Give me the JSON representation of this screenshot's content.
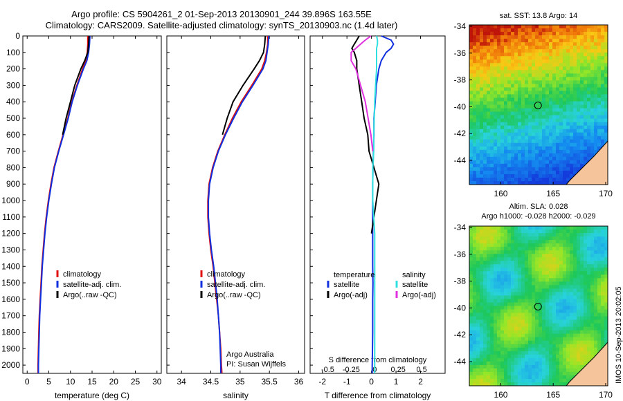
{
  "header": {
    "title_line1": "Argo profile: CS 5904261_2 01-Sep-2013 20130901_244 39.896S 163.55E",
    "title_line2": "Climatology: CARS2009. Satellite-adjusted climatology: synTS_20130903.nc (1.4d later)"
  },
  "stamp": "IMOS 10-Sep-2013 20:02:05",
  "colors": {
    "red": "#e01010",
    "blue": "#1030e0",
    "black": "#000000",
    "cyan": "#30e0e0",
    "magenta": "#e030e0",
    "land": "#f6c49a"
  },
  "chart_data": [
    {
      "type": "line",
      "name": "temperature",
      "xlabel": "temperature (deg C)",
      "ylabel": "",
      "xlim": [
        -1,
        31
      ],
      "ylim": [
        2050,
        0
      ],
      "xticks": [
        0,
        5,
        10,
        15,
        20,
        25,
        30
      ],
      "yticks": [
        0,
        100,
        200,
        300,
        400,
        500,
        600,
        700,
        800,
        900,
        1000,
        1100,
        1200,
        1300,
        1400,
        1500,
        1600,
        1700,
        1800,
        1900,
        2000
      ],
      "legend": {
        "placement": "lower-center",
        "entries": [
          "climatology",
          "satellite-adj. clim.",
          "Argo(..raw -QC)"
        ]
      },
      "depth": [
        0,
        50,
        100,
        150,
        200,
        300,
        400,
        500,
        600,
        700,
        800,
        900,
        1000,
        1100,
        1200,
        1300,
        1400,
        1500,
        1600,
        1700,
        1800,
        1900,
        2000,
        2050
      ],
      "series": [
        {
          "name": "climatology",
          "color": "#e01010",
          "values": [
            14.0,
            14.0,
            13.9,
            13.5,
            12.8,
            11.5,
            10.3,
            9.4,
            8.3,
            7.2,
            6.2,
            5.5,
            4.9,
            4.4,
            4.0,
            3.7,
            3.4,
            3.2,
            3.0,
            2.8,
            2.7,
            2.6,
            2.5,
            2.5
          ]
        },
        {
          "name": "satellite-adj. clim.",
          "color": "#1030e0",
          "values": [
            14.5,
            14.4,
            14.2,
            13.8,
            13.0,
            11.6,
            10.4,
            9.5,
            8.4,
            7.3,
            6.3,
            5.6,
            5.0,
            4.5,
            4.1,
            3.8,
            3.5,
            3.3,
            3.1,
            2.9,
            2.8,
            2.7,
            2.6,
            2.6
          ]
        },
        {
          "name": "Argo(..raw -QC)",
          "color": "#000000",
          "depth_max": 600,
          "values": [
            14.3,
            14.2,
            14.0,
            13.3,
            12.4,
            11.0,
            10.0,
            9.0,
            8.2
          ]
        }
      ]
    },
    {
      "type": "line",
      "name": "salinity",
      "xlabel": "salinity",
      "xlim": [
        33.75,
        36.1
      ],
      "ylim": [
        2050,
        0
      ],
      "xticks": [
        34,
        34.5,
        35,
        35.5,
        36
      ],
      "xticklabels": [
        "34",
        "34.5",
        "35",
        "35.5",
        "36"
      ],
      "legend": {
        "placement": "lower-center",
        "entries": [
          "climatology",
          "satellite-adj. clim.",
          "Argo(..raw -QC)"
        ]
      },
      "annotation": [
        "Argo Australia",
        "PI: Susan Wijffels"
      ],
      "depth": [
        0,
        50,
        100,
        150,
        200,
        300,
        400,
        500,
        600,
        700,
        800,
        900,
        1000,
        1100,
        1200,
        1300,
        1400,
        1500,
        1600,
        1700,
        1800,
        1900,
        2000,
        2050
      ],
      "series": [
        {
          "name": "climatology",
          "color": "#e01010",
          "values": [
            35.47,
            35.47,
            35.45,
            35.42,
            35.37,
            35.2,
            35.02,
            34.87,
            34.74,
            34.62,
            34.53,
            34.47,
            34.45,
            34.45,
            34.47,
            34.5,
            34.54,
            34.57,
            34.6,
            34.63,
            34.65,
            34.67,
            34.68,
            34.69
          ]
        },
        {
          "name": "satellite-adj. clim.",
          "color": "#1030e0",
          "values": [
            35.49,
            35.48,
            35.46,
            35.44,
            35.39,
            35.22,
            35.04,
            34.89,
            34.75,
            34.63,
            34.54,
            34.48,
            34.46,
            34.46,
            34.48,
            34.51,
            34.55,
            34.58,
            34.61,
            34.63,
            34.65,
            34.66,
            34.67,
            34.67
          ]
        },
        {
          "name": "Argo(..raw -QC)",
          "color": "#000000",
          "depth_max": 600,
          "values": [
            35.43,
            35.42,
            35.4,
            35.33,
            35.24,
            35.05,
            34.88,
            34.78,
            34.7
          ]
        }
      ]
    },
    {
      "type": "line",
      "name": "difference",
      "xlabel": "T difference from climatology",
      "xlabel_top": "S difference from climatology",
      "xlim": [
        -2.5,
        3
      ],
      "ylim": [
        2050,
        0
      ],
      "xticks": [
        -2,
        -1,
        0,
        1,
        2
      ],
      "sticks": [
        -0.5,
        -0.25,
        0,
        0.25,
        0.5
      ],
      "sticklabels": [
        "-0.5",
        "-0.25",
        "0",
        "0.25",
        "0.5"
      ],
      "legend": {
        "placement": "lower-center",
        "groups": [
          {
            "title": "temperature",
            "entries": [
              "satellite",
              "Argo(-adj)"
            ]
          },
          {
            "title": "salinity",
            "entries": [
              "satellite",
              "Argo(-adj)"
            ]
          }
        ]
      },
      "depth": [
        0,
        25,
        50,
        75,
        100,
        150,
        200,
        300,
        400,
        500,
        600,
        700,
        800,
        900,
        1000,
        1100,
        1200,
        1300,
        1400,
        1500,
        1600,
        1700,
        1800,
        1900,
        2000,
        2050
      ],
      "series": [
        {
          "name": "temperature satellite",
          "color": "#1030e0",
          "values": [
            0.4,
            0.8,
            0.9,
            0.8,
            0.6,
            0.4,
            0.3,
            0.2,
            0.15,
            0.1,
            0.1,
            0.08,
            0.06,
            0.05,
            0.05,
            0.05,
            0.05,
            0.05,
            0.05,
            0.06,
            0.05,
            0.05,
            0.05,
            0.04,
            0.03,
            0.03
          ]
        },
        {
          "name": "temperature Argo(-adj)",
          "color": "#000000",
          "depth_max": 1200,
          "values": [
            -0.5,
            -0.6,
            -0.7,
            -0.8,
            -0.7,
            -0.6,
            -0.6,
            -0.5,
            -0.4,
            -0.3,
            -0.15,
            -0.1,
            0.1,
            0.3,
            0.2,
            0.1,
            0.0
          ]
        },
        {
          "name": "salinity satellite",
          "color": "#30e0e0",
          "values": [
            0.02,
            0.03,
            0.03,
            0.02,
            0.02,
            0.02,
            0.02,
            0.01,
            0.0,
            -0.005,
            -0.01,
            -0.01,
            -0.02,
            -0.02,
            -0.02,
            -0.01,
            0.0,
            0.0,
            0.0,
            0.0,
            0.0,
            0.0,
            0.0,
            0.0,
            0.0,
            0.0
          ]
        },
        {
          "name": "salinity Argo(-adj)",
          "color": "#e030e0",
          "depth_max": 650,
          "values": [
            -0.04,
            -0.1,
            -0.15,
            -0.2,
            -0.25,
            -0.25,
            -0.2,
            -0.15,
            -0.1,
            -0.07,
            -0.04,
            -0.02
          ]
        }
      ]
    }
  ],
  "maps": [
    {
      "title": "sat. SST: 13.8 Argo: 14",
      "lat_ticks": [
        "-34",
        "-36",
        "-38",
        "-40",
        "-42",
        "-44"
      ],
      "lon_ticks": [
        "160",
        "165",
        "170"
      ],
      "marker": {
        "lat": -39.9,
        "lon": 163.55
      }
    },
    {
      "title_line1": "Altim. SLA: 0.028",
      "title_line2": "Argo h1000: -0.028 h2000: -0.029",
      "lat_ticks": [
        "-34",
        "-36",
        "-38",
        "-40",
        "-42",
        "-44"
      ],
      "lon_ticks": [
        "160",
        "165",
        "170"
      ],
      "marker": {
        "lat": -39.9,
        "lon": 163.55
      }
    }
  ]
}
